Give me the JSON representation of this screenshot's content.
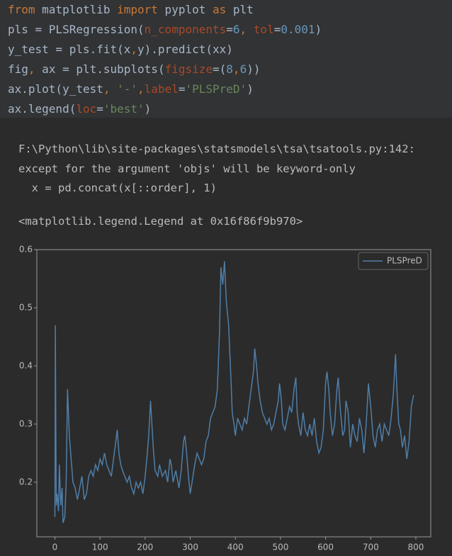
{
  "code": {
    "lines": [
      [
        {
          "text": "from",
          "color": "#cc7832"
        },
        {
          "text": " matplotlib ",
          "color": "#a9b7c6"
        },
        {
          "text": "import",
          "color": "#cc7832"
        },
        {
          "text": " pyplot ",
          "color": "#a9b7c6"
        },
        {
          "text": "as",
          "color": "#cc7832"
        },
        {
          "text": " plt",
          "color": "#a9b7c6"
        }
      ],
      [
        {
          "text": "pls = PLSRegression(",
          "color": "#a9b7c6"
        },
        {
          "text": "n_components",
          "color": "#aa4926"
        },
        {
          "text": "=",
          "color": "#a9b7c6"
        },
        {
          "text": "6",
          "color": "#6897bb"
        },
        {
          "text": ", ",
          "color": "#cc7832"
        },
        {
          "text": "tol",
          "color": "#aa4926"
        },
        {
          "text": "=",
          "color": "#a9b7c6"
        },
        {
          "text": "0.001",
          "color": "#6897bb"
        },
        {
          "text": ")",
          "color": "#a9b7c6"
        }
      ],
      [
        {
          "text": "y_test = pls.fit(x",
          "color": "#a9b7c6"
        },
        {
          "text": ",",
          "color": "#cc7832"
        },
        {
          "text": "y).predict(xx)",
          "color": "#a9b7c6"
        }
      ],
      [
        {
          "text": "fig",
          "color": "#a9b7c6"
        },
        {
          "text": ",",
          "color": "#cc7832"
        },
        {
          "text": " ax = plt.subplots(",
          "color": "#a9b7c6"
        },
        {
          "text": "figsize",
          "color": "#aa4926"
        },
        {
          "text": "=(",
          "color": "#a9b7c6"
        },
        {
          "text": "8",
          "color": "#6897bb"
        },
        {
          "text": ",",
          "color": "#cc7832"
        },
        {
          "text": "6",
          "color": "#6897bb"
        },
        {
          "text": "))",
          "color": "#a9b7c6"
        }
      ],
      [
        {
          "text": "ax.plot(y_test",
          "color": "#a9b7c6"
        },
        {
          "text": ", ",
          "color": "#cc7832"
        },
        {
          "text": "'-'",
          "color": "#6a8759"
        },
        {
          "text": ",",
          "color": "#cc7832"
        },
        {
          "text": "label",
          "color": "#aa4926"
        },
        {
          "text": "=",
          "color": "#a9b7c6"
        },
        {
          "text": "'PLSPreD'",
          "color": "#6a8759"
        },
        {
          "text": ")",
          "color": "#a9b7c6"
        }
      ],
      [
        {
          "text": "ax.legend(",
          "color": "#a9b7c6"
        },
        {
          "text": "loc",
          "color": "#aa4926"
        },
        {
          "text": "=",
          "color": "#a9b7c6"
        },
        {
          "text": "'best'",
          "color": "#6a8759"
        },
        {
          "text": ")",
          "color": "#a9b7c6"
        }
      ]
    ]
  },
  "output": {
    "lines": [
      "F:\\Python\\lib\\site-packages\\statsmodels\\tsa\\tsatools.py:142: ",
      "except for the argument 'objs' will be keyword-only",
      "  x = pd.concat(x[::order], 1)"
    ],
    "result": "<matplotlib.legend.Legend at 0x16f86f9b970>"
  },
  "chart_data": {
    "type": "line",
    "legend": "upper right",
    "x": [
      0,
      1,
      3,
      5,
      8,
      10,
      13,
      16,
      18,
      22,
      25,
      28,
      32,
      36,
      40,
      45,
      50,
      55,
      60,
      65,
      70,
      75,
      80,
      85,
      90,
      95,
      100,
      105,
      110,
      115,
      120,
      125,
      130,
      135,
      138,
      142,
      146,
      150,
      155,
      160,
      165,
      170,
      175,
      180,
      185,
      190,
      195,
      200,
      205,
      208,
      212,
      215,
      218,
      222,
      228,
      232,
      238,
      245,
      250,
      255,
      258,
      262,
      268,
      275,
      280,
      285,
      288,
      292,
      296,
      300,
      304,
      310,
      315,
      320,
      325,
      330,
      335,
      340,
      345,
      350,
      355,
      360,
      365,
      368,
      372,
      376,
      380,
      385,
      390,
      393,
      397,
      400,
      405,
      410,
      415,
      420,
      425,
      430,
      435,
      440,
      443,
      447,
      450,
      455,
      460,
      465,
      470,
      475,
      480,
      485,
      490,
      495,
      498,
      502,
      505,
      510,
      515,
      520,
      525,
      530,
      534,
      537,
      540,
      545,
      550,
      555,
      560,
      565,
      570,
      575,
      580,
      585,
      590,
      595,
      600,
      603,
      607,
      610,
      615,
      620,
      625,
      628,
      632,
      638,
      642,
      645,
      650,
      655,
      660,
      665,
      670,
      675,
      680,
      685,
      690,
      695,
      700,
      705,
      710,
      715,
      720,
      725,
      730,
      735,
      740,
      745,
      750,
      755,
      758,
      762,
      766,
      770,
      775,
      780,
      785,
      790,
      795
    ],
    "series": [
      {
        "name": "PLSPreD",
        "color": "#4f7ea8",
        "values": [
          0.14,
          0.47,
          0.16,
          0.18,
          0.15,
          0.23,
          0.16,
          0.19,
          0.13,
          0.14,
          0.2,
          0.36,
          0.28,
          0.24,
          0.2,
          0.19,
          0.17,
          0.19,
          0.21,
          0.17,
          0.18,
          0.21,
          0.22,
          0.21,
          0.23,
          0.22,
          0.24,
          0.23,
          0.25,
          0.23,
          0.22,
          0.21,
          0.24,
          0.27,
          0.29,
          0.25,
          0.23,
          0.22,
          0.21,
          0.2,
          0.21,
          0.19,
          0.18,
          0.2,
          0.19,
          0.2,
          0.18,
          0.21,
          0.25,
          0.28,
          0.34,
          0.3,
          0.26,
          0.22,
          0.21,
          0.23,
          0.21,
          0.22,
          0.2,
          0.24,
          0.23,
          0.2,
          0.22,
          0.19,
          0.22,
          0.27,
          0.28,
          0.25,
          0.21,
          0.18,
          0.2,
          0.23,
          0.25,
          0.24,
          0.23,
          0.24,
          0.27,
          0.28,
          0.31,
          0.32,
          0.33,
          0.36,
          0.46,
          0.57,
          0.54,
          0.58,
          0.51,
          0.47,
          0.38,
          0.32,
          0.3,
          0.28,
          0.31,
          0.3,
          0.29,
          0.31,
          0.3,
          0.33,
          0.36,
          0.39,
          0.43,
          0.4,
          0.37,
          0.34,
          0.32,
          0.31,
          0.3,
          0.31,
          0.29,
          0.3,
          0.32,
          0.34,
          0.37,
          0.34,
          0.3,
          0.29,
          0.31,
          0.33,
          0.32,
          0.36,
          0.38,
          0.32,
          0.3,
          0.28,
          0.32,
          0.29,
          0.28,
          0.3,
          0.28,
          0.31,
          0.27,
          0.25,
          0.26,
          0.29,
          0.37,
          0.39,
          0.36,
          0.32,
          0.28,
          0.3,
          0.36,
          0.38,
          0.33,
          0.28,
          0.29,
          0.34,
          0.32,
          0.26,
          0.3,
          0.28,
          0.27,
          0.31,
          0.29,
          0.25,
          0.3,
          0.37,
          0.33,
          0.28,
          0.26,
          0.29,
          0.3,
          0.27,
          0.3,
          0.29,
          0.28,
          0.31,
          0.35,
          0.42,
          0.36,
          0.3,
          0.29,
          0.26,
          0.28,
          0.24,
          0.27,
          0.33,
          0.35
        ]
      }
    ],
    "xlim": [
      -40,
      833
    ],
    "ylim": [
      0.106,
      0.6
    ],
    "xticks": [
      0,
      100,
      200,
      300,
      400,
      500,
      600,
      700,
      800
    ],
    "yticks": [
      0.2,
      0.3,
      0.4,
      0.5,
      0.6
    ]
  }
}
